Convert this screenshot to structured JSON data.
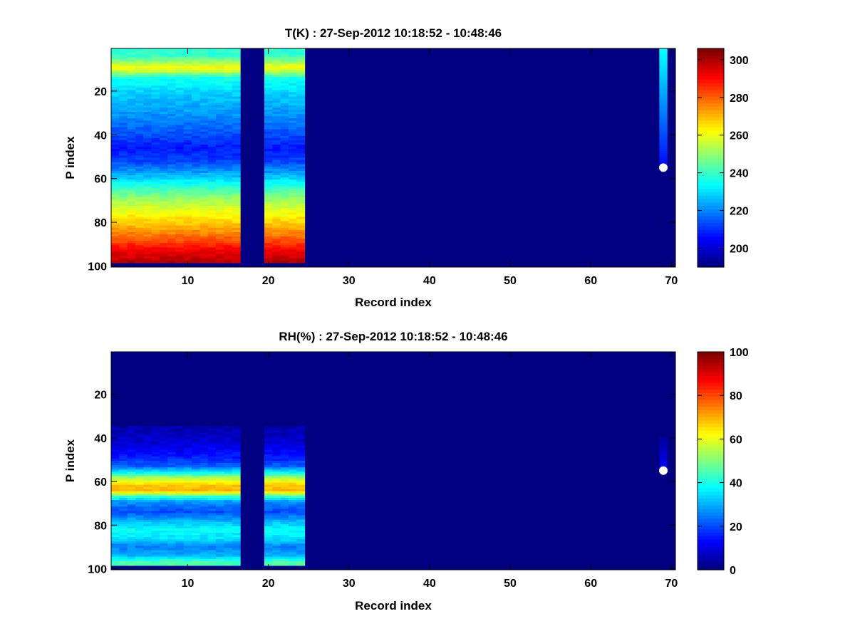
{
  "chart_data": [
    {
      "type": "heatmap",
      "title": "T(K) : 27-Sep-2012 10:18:52 - 10:48:46",
      "xlabel": "Record index",
      "ylabel": "P index",
      "xlim": [
        0.5,
        70.5
      ],
      "ylim": [
        0.5,
        100.5
      ],
      "y_reversed": true,
      "xticks": [
        10,
        20,
        30,
        40,
        50,
        60,
        70
      ],
      "yticks": [
        20,
        40,
        60,
        80,
        100
      ],
      "clim": [
        190,
        306
      ],
      "colormap": "jet",
      "colorbar_ticks": [
        200,
        220,
        240,
        260,
        280,
        300
      ],
      "fill_value": 190,
      "data_columns": [
        [
          1,
          16
        ],
        [
          20,
          24
        ]
      ],
      "valid_rows": [
        1,
        98
      ],
      "profile": [
        {
          "p": 1,
          "value": 238
        },
        {
          "p": 4,
          "value": 240
        },
        {
          "p": 7,
          "value": 252
        },
        {
          "p": 9,
          "value": 262
        },
        {
          "p": 11,
          "value": 255
        },
        {
          "p": 14,
          "value": 236
        },
        {
          "p": 20,
          "value": 229
        },
        {
          "p": 30,
          "value": 222
        },
        {
          "p": 40,
          "value": 213
        },
        {
          "p": 46,
          "value": 207
        },
        {
          "p": 52,
          "value": 212
        },
        {
          "p": 58,
          "value": 224
        },
        {
          "p": 64,
          "value": 239
        },
        {
          "p": 70,
          "value": 252
        },
        {
          "p": 76,
          "value": 262
        },
        {
          "p": 82,
          "value": 271
        },
        {
          "p": 88,
          "value": 282
        },
        {
          "p": 93,
          "value": 293
        },
        {
          "p": 98,
          "value": 300
        }
      ],
      "partial_column": {
        "x": 69,
        "rows": [
          1,
          55
        ],
        "top_value": 234,
        "bottom_value": 205
      },
      "marker": {
        "x": 69,
        "y": 55,
        "color": "#ffffff"
      }
    },
    {
      "type": "heatmap",
      "title": "RH(%) : 27-Sep-2012 10:18:52 - 10:48:46",
      "xlabel": "Record index",
      "ylabel": "P index",
      "xlim": [
        0.5,
        70.5
      ],
      "ylim": [
        0.5,
        100.5
      ],
      "y_reversed": true,
      "xticks": [
        10,
        20,
        30,
        40,
        50,
        60,
        70
      ],
      "yticks": [
        20,
        40,
        60,
        80,
        100
      ],
      "clim": [
        0,
        100
      ],
      "colormap": "jet",
      "colorbar_ticks": [
        0,
        20,
        40,
        60,
        80,
        100
      ],
      "fill_value": 0,
      "data_columns": [
        [
          1,
          16
        ],
        [
          20,
          24
        ]
      ],
      "valid_rows": [
        35,
        98
      ],
      "profile": [
        {
          "p": 35,
          "value": 4
        },
        {
          "p": 42,
          "value": 8
        },
        {
          "p": 48,
          "value": 14
        },
        {
          "p": 53,
          "value": 22
        },
        {
          "p": 56,
          "value": 38
        },
        {
          "p": 58,
          "value": 52
        },
        {
          "p": 60,
          "value": 62
        },
        {
          "p": 62,
          "value": 68
        },
        {
          "p": 64,
          "value": 70
        },
        {
          "p": 65,
          "value": 62
        },
        {
          "p": 67,
          "value": 42
        },
        {
          "p": 69,
          "value": 28
        },
        {
          "p": 71,
          "value": 24
        },
        {
          "p": 74,
          "value": 20
        },
        {
          "p": 78,
          "value": 30
        },
        {
          "p": 82,
          "value": 38
        },
        {
          "p": 86,
          "value": 35
        },
        {
          "p": 90,
          "value": 25
        },
        {
          "p": 94,
          "value": 30
        },
        {
          "p": 97,
          "value": 45
        }
      ],
      "partial_column": {
        "x": 69,
        "rows": [
          40,
          55
        ],
        "top_value": 3,
        "bottom_value": 12
      },
      "marker": {
        "x": 69,
        "y": 55,
        "color": "#ffffff"
      }
    }
  ]
}
